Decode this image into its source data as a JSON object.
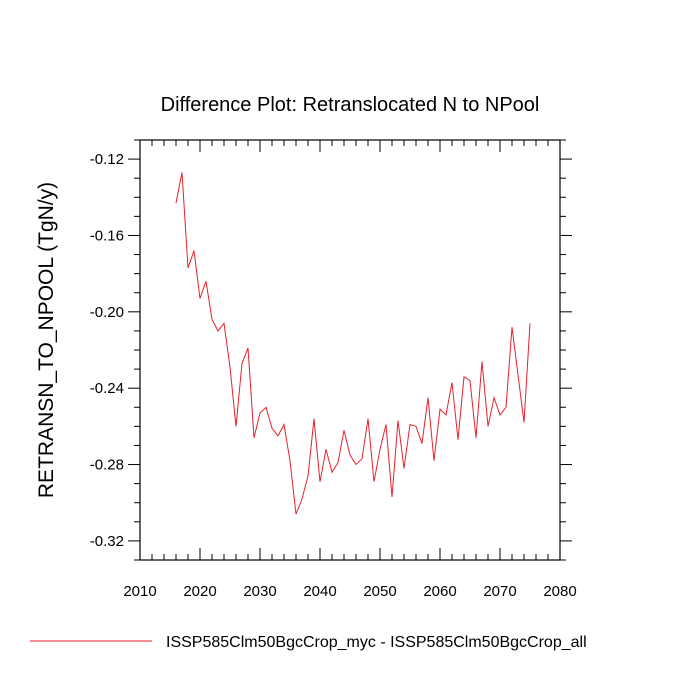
{
  "chart_data": {
    "type": "line",
    "title": "Difference Plot: Retranslocated N to NPool",
    "ylabel": "RETRANSN_TO_NPOOL  (TgN/y)",
    "xlabel": "",
    "xlim": [
      2010,
      2080
    ],
    "ylim": [
      -0.33,
      -0.11
    ],
    "x_ticks": [
      2010,
      2020,
      2030,
      2040,
      2050,
      2060,
      2070,
      2080
    ],
    "x_tick_labels": [
      "2010",
      "2020",
      "2030",
      "2040",
      "2050",
      "2060",
      "2070",
      "2080"
    ],
    "y_ticks": [
      -0.32,
      -0.28,
      -0.24,
      -0.2,
      -0.16,
      -0.12
    ],
    "y_tick_labels": [
      "-0.32",
      "-0.28",
      "-0.24",
      "-0.20",
      "-0.16",
      "-0.12"
    ],
    "grid": false,
    "legend_position": "bottom",
    "series": [
      {
        "name": "ISSP585Clm50BgcCrop_myc - ISSP585Clm50BgcCrop_all",
        "color": "#e8212b",
        "x": [
          2016,
          2017,
          2018,
          2019,
          2020,
          2021,
          2022,
          2023,
          2024,
          2025,
          2026,
          2027,
          2028,
          2029,
          2030,
          2031,
          2032,
          2033,
          2034,
          2035,
          2036,
          2037,
          2038,
          2039,
          2040,
          2041,
          2042,
          2043,
          2044,
          2045,
          2046,
          2047,
          2048,
          2049,
          2050,
          2051,
          2052,
          2053,
          2054,
          2055,
          2056,
          2057,
          2058,
          2059,
          2060,
          2061,
          2062,
          2063,
          2064,
          2065,
          2066,
          2067,
          2068,
          2069,
          2070,
          2071,
          2072,
          2073,
          2074,
          2075
        ],
        "values": [
          -0.143,
          -0.127,
          -0.177,
          -0.168,
          -0.193,
          -0.184,
          -0.204,
          -0.21,
          -0.206,
          -0.229,
          -0.26,
          -0.227,
          -0.219,
          -0.266,
          -0.253,
          -0.25,
          -0.261,
          -0.265,
          -0.259,
          -0.278,
          -0.306,
          -0.298,
          -0.286,
          -0.256,
          -0.289,
          -0.272,
          -0.284,
          -0.279,
          -0.262,
          -0.275,
          -0.28,
          -0.277,
          -0.256,
          -0.289,
          -0.272,
          -0.259,
          -0.297,
          -0.257,
          -0.282,
          -0.259,
          -0.26,
          -0.269,
          -0.245,
          -0.278,
          -0.251,
          -0.254,
          -0.237,
          -0.267,
          -0.234,
          -0.236,
          -0.266,
          -0.226,
          -0.26,
          -0.245,
          -0.254,
          -0.25,
          -0.208,
          -0.233,
          -0.258,
          -0.206
        ]
      }
    ]
  }
}
